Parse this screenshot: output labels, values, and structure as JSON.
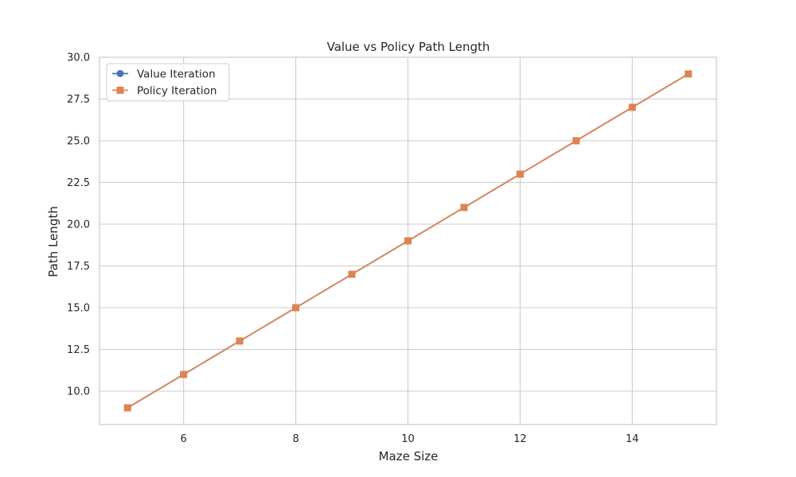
{
  "chart_data": {
    "type": "line",
    "title": "Value vs Policy Path Length",
    "xlabel": "Maze Size",
    "ylabel": "Path Length",
    "x": [
      5,
      6,
      7,
      8,
      9,
      10,
      11,
      12,
      13,
      14,
      15
    ],
    "xlim": [
      4.5,
      15.5
    ],
    "ylim": [
      8.0,
      30.0
    ],
    "x_ticks": [
      6,
      8,
      10,
      12,
      14
    ],
    "x_tick_labels": [
      "6",
      "8",
      "10",
      "12",
      "14"
    ],
    "y_ticks": [
      10,
      12.5,
      15,
      17.5,
      20,
      22.5,
      25,
      27.5,
      30
    ],
    "y_tick_labels": [
      "10.0",
      "12.5",
      "15.0",
      "17.5",
      "20.0",
      "22.5",
      "25.0",
      "27.5",
      "30.0"
    ],
    "grid": true,
    "legend_position": "top-left",
    "series": [
      {
        "name": "Value Iteration",
        "values": [
          9,
          11,
          13,
          15,
          17,
          19,
          21,
          23,
          25,
          27,
          29
        ],
        "color": "#4c72b0",
        "marker": "circle"
      },
      {
        "name": "Policy Iteration",
        "values": [
          9,
          11,
          13,
          15,
          17,
          19,
          21,
          23,
          25,
          27,
          29
        ],
        "color": "#dd8452",
        "marker": "square"
      }
    ]
  }
}
